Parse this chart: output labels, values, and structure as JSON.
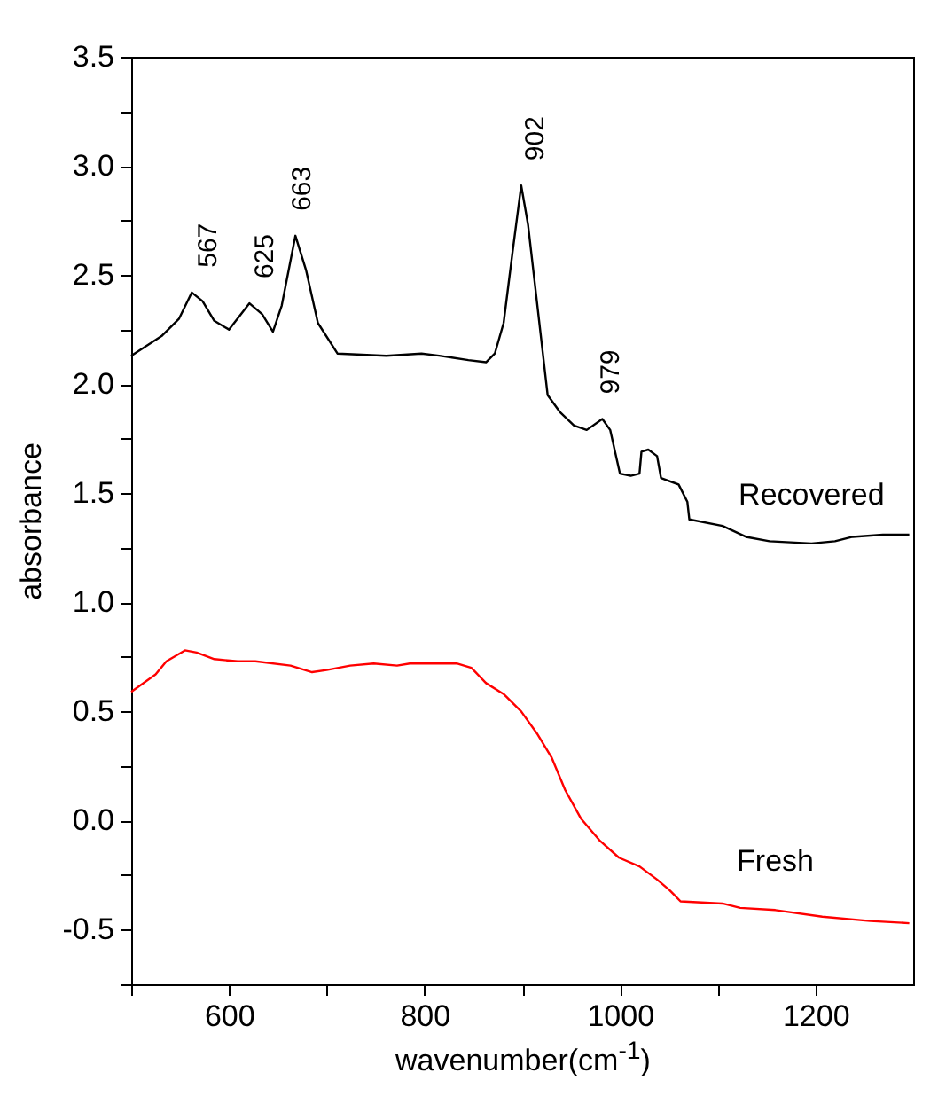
{
  "chart_data": {
    "type": "line",
    "xlabel": "wavenumber(cm$^{-1}$)",
    "ylabel": "absorbance",
    "xlim": [
      500,
      1300
    ],
    "ylim": [
      -0.75,
      3.5
    ],
    "xticks": [
      {
        "value": 500,
        "label": null
      },
      {
        "value": 600,
        "label": "600"
      },
      {
        "value": 700,
        "label": null
      },
      {
        "value": 800,
        "label": "800"
      },
      {
        "value": 900,
        "label": null
      },
      {
        "value": 1000,
        "label": "1000"
      },
      {
        "value": 1100,
        "label": null
      },
      {
        "value": 1200,
        "label": "1200"
      }
    ],
    "yticks": [
      {
        "value": -0.75,
        "label": null
      },
      -0.5,
      {
        "value": -0.25,
        "label": null
      },
      {
        "value": 0,
        "label": "0.0"
      },
      {
        "value": 0.25,
        "label": null
      },
      0.5,
      {
        "value": 0.75,
        "label": null
      },
      {
        "value": 1,
        "label": "1.0"
      },
      {
        "value": 1.25,
        "label": null
      },
      1.5,
      {
        "value": 1.75,
        "label": null
      },
      {
        "value": 2,
        "label": "2.0"
      },
      {
        "value": 2.25,
        "label": null
      },
      2.5,
      {
        "value": 2.75,
        "label": null
      },
      {
        "value": 3,
        "label": "3.0"
      },
      {
        "value": 3.25,
        "label": null
      },
      3.5
    ],
    "grid": false,
    "marker": "none",
    "line_style": "solid",
    "series": [
      {
        "name": "Recovered",
        "color": "#000000",
        "x": [
          500,
          531,
          549,
          562,
          573,
          585,
          600,
          621,
          634,
          645,
          654,
          668,
          679,
          691,
          711,
          761,
          797,
          815,
          845,
          863,
          872,
          881,
          890,
          899,
          906,
          915,
          926,
          939,
          953,
          966,
          982,
          990,
          1000,
          1011,
          1020,
          1022,
          1029,
          1038,
          1042,
          1060,
          1069,
          1071,
          1105,
          1129,
          1153,
          1196,
          1220,
          1238,
          1269,
          1296
        ],
        "values": [
          2.13,
          2.22,
          2.3,
          2.42,
          2.38,
          2.29,
          2.25,
          2.37,
          2.32,
          2.24,
          2.36,
          2.68,
          2.52,
          2.28,
          2.14,
          2.13,
          2.14,
          2.13,
          2.11,
          2.1,
          2.14,
          2.28,
          2.6,
          2.91,
          2.73,
          2.38,
          1.95,
          1.87,
          1.81,
          1.79,
          1.84,
          1.79,
          1.59,
          1.58,
          1.59,
          1.69,
          1.7,
          1.67,
          1.57,
          1.54,
          1.46,
          1.38,
          1.35,
          1.3,
          1.28,
          1.27,
          1.28,
          1.3,
          1.31,
          1.31
        ]
      },
      {
        "name": "Fresh",
        "color": "#ff0000",
        "x": [
          500,
          525,
          536,
          555,
          567,
          585,
          609,
          627,
          663,
          685,
          700,
          724,
          748,
          772,
          785,
          833,
          848,
          863,
          881,
          899,
          915,
          930,
          944,
          960,
          979,
          999,
          1020,
          1038,
          1051,
          1062,
          1105,
          1123,
          1159,
          1207,
          1256,
          1296
        ],
        "values": [
          0.59,
          0.67,
          0.73,
          0.78,
          0.77,
          0.74,
          0.73,
          0.73,
          0.71,
          0.68,
          0.69,
          0.71,
          0.72,
          0.71,
          0.72,
          0.72,
          0.7,
          0.63,
          0.58,
          0.5,
          0.4,
          0.29,
          0.14,
          0.01,
          -0.09,
          -0.17,
          -0.21,
          -0.27,
          -0.32,
          -0.37,
          -0.38,
          -0.4,
          -0.41,
          -0.44,
          -0.46,
          -0.47
        ]
      }
    ],
    "annotations": [
      {
        "text": "567",
        "x": 567,
        "y": 2.42
      },
      {
        "text": "625",
        "x": 625,
        "y": 2.37
      },
      {
        "text": "663",
        "x": 663,
        "y": 2.68
      },
      {
        "text": "902",
        "x": 902,
        "y": 2.91
      },
      {
        "text": "979",
        "x": 979,
        "y": 1.84
      }
    ]
  }
}
